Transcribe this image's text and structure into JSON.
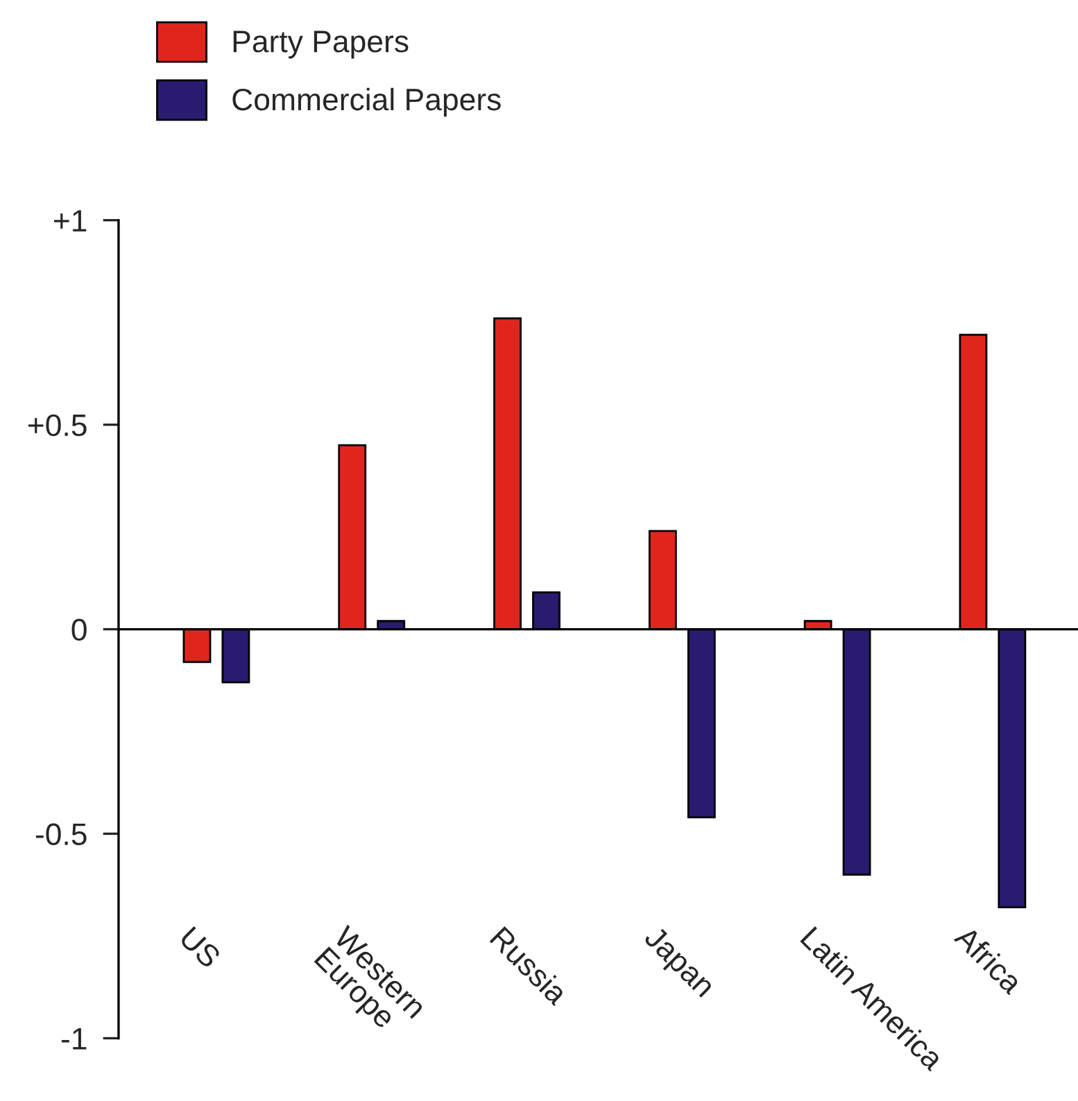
{
  "chart_data": {
    "type": "bar",
    "categories": [
      "US",
      "Western\nEurope",
      "Russia",
      "Japan",
      "Latin America",
      "Africa"
    ],
    "series": [
      {
        "name": "Party Papers",
        "color": "#e0261c",
        "values": [
          -0.08,
          0.45,
          0.76,
          0.24,
          0.02,
          0.72
        ]
      },
      {
        "name": "Commercial Papers",
        "color": "#2a1a70",
        "values": [
          -0.13,
          0.02,
          0.09,
          -0.46,
          -0.6,
          -0.68
        ]
      }
    ],
    "ylim": [
      -1,
      1
    ],
    "yticks": [
      {
        "value": -1,
        "label": "-1"
      },
      {
        "value": -0.5,
        "label": "-0.5"
      },
      0,
      {
        "value": 0.5,
        "label": "+0.5"
      },
      {
        "value": 1,
        "label": "+1"
      }
    ],
    "ref_lines": [
      {
        "axis": "y",
        "value": 0,
        "color": "#000000",
        "line_style": "solid"
      }
    ],
    "grid": false,
    "legend": "top left"
  }
}
